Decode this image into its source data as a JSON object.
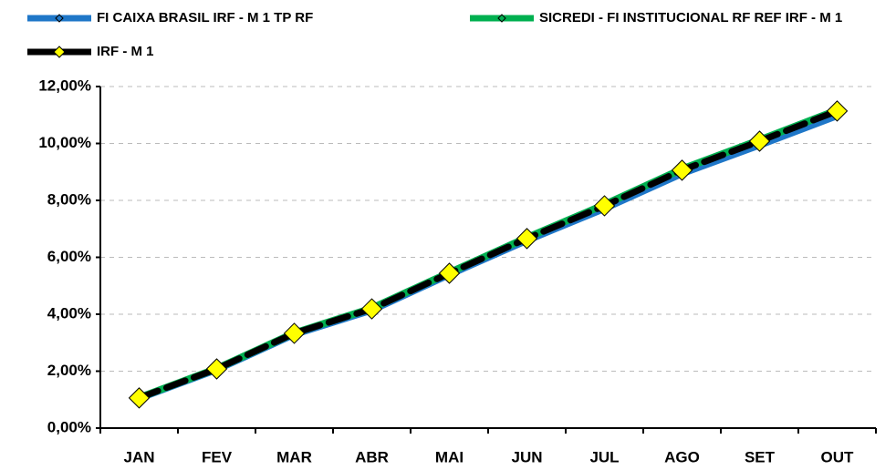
{
  "chart_data": {
    "type": "line",
    "categories": [
      "JAN",
      "FEV",
      "MAR",
      "ABR",
      "MAI",
      "JUN",
      "JUL",
      "AGO",
      "SET",
      "OUT"
    ],
    "series": [
      {
        "name": "FI CAIXA BRASIL IRF - M 1 TP RF",
        "color": "#1f77c8",
        "values": [
          1.05,
          2.06,
          3.3,
          4.15,
          5.4,
          6.6,
          7.72,
          8.95,
          9.95,
          10.98
        ]
      },
      {
        "name": "SICREDI - FI INSTITUCIONAL RF REF IRF - M 1",
        "color": "#00b050",
        "values": [
          1.07,
          2.09,
          3.34,
          4.21,
          5.46,
          6.69,
          7.85,
          9.1,
          10.12,
          11.17
        ]
      },
      {
        "name": "IRF - M 1",
        "color": "#000000",
        "marker_color": "#ffff00",
        "dashed": true,
        "values": [
          1.06,
          2.08,
          3.33,
          4.19,
          5.44,
          6.66,
          7.81,
          9.06,
          10.08,
          11.14
        ]
      }
    ],
    "ylim": [
      0,
      12
    ],
    "yticks": [
      {
        "value": 0,
        "label": "0,00%"
      },
      {
        "value": 2,
        "label": "2,00%"
      },
      {
        "value": 4,
        "label": "4,00%"
      },
      {
        "value": 6,
        "label": "6,00%"
      },
      {
        "value": 8,
        "label": "8,00%"
      },
      {
        "value": 10,
        "label": "10,00%"
      },
      {
        "value": 12,
        "label": "12,00%"
      }
    ],
    "grid": true,
    "legend": "top"
  }
}
